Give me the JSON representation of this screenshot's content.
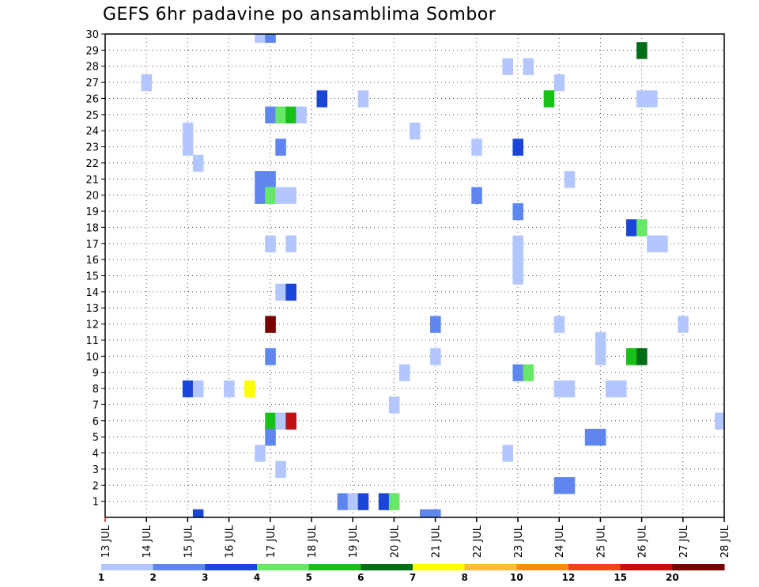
{
  "chart_data": {
    "type": "heatmap",
    "title": "GEFS 6hr padavine po ansamblima Sombor",
    "xlabel": "",
    "ylabel": "",
    "y_ticks": [
      "1",
      "2",
      "3",
      "4",
      "5",
      "6",
      "7",
      "8",
      "9",
      "10",
      "11",
      "12",
      "13",
      "14",
      "15",
      "16",
      "17",
      "18",
      "19",
      "20",
      "21",
      "22",
      "23",
      "24",
      "25",
      "26",
      "27",
      "28",
      "29",
      "30"
    ],
    "x_ticks": [
      "13 JUL",
      "14 JUL",
      "15 JUL",
      "16 JUL",
      "17 JUL",
      "18 JUL",
      "19 JUL",
      "20 JUL",
      "21 JUL",
      "22 JUL",
      "23 JUL",
      "24 JUL",
      "25 JUL",
      "26 JUL",
      "27 JUL",
      "28 JUL"
    ],
    "xlim": [
      0,
      15
    ],
    "ylim": [
      0,
      30
    ],
    "grid": true,
    "colorbar": {
      "labels": [
        "1",
        "2",
        "3",
        "4",
        "5",
        "6",
        "7",
        "8",
        "10",
        "12",
        "15",
        "20"
      ],
      "colors": [
        "#b3c6ff",
        "#5e86ee",
        "#1a45d8",
        "#66e866",
        "#18c018",
        "#006e18",
        "#ffff00",
        "#ffba40",
        "#ff8a18",
        "#e84818",
        "#c01010",
        "#780000"
      ]
    },
    "cells": [
      {
        "day": 3.75,
        "member": 30,
        "cat": 1
      },
      {
        "day": 4.0,
        "member": 30,
        "cat": 2
      },
      {
        "day": 13.0,
        "member": 29,
        "cat": 6
      },
      {
        "day": 9.75,
        "member": 28,
        "cat": 1
      },
      {
        "day": 10.25,
        "member": 28,
        "cat": 1
      },
      {
        "day": 1.0,
        "member": 27,
        "cat": 1
      },
      {
        "day": 11.0,
        "member": 27,
        "cat": 1
      },
      {
        "day": 5.25,
        "member": 26,
        "cat": 3
      },
      {
        "day": 6.25,
        "member": 26,
        "cat": 1
      },
      {
        "day": 10.75,
        "member": 26,
        "cat": 5
      },
      {
        "day": 13.0,
        "member": 26,
        "cat": 1
      },
      {
        "day": 13.25,
        "member": 26,
        "cat": 1
      },
      {
        "day": 4.0,
        "member": 25,
        "cat": 2
      },
      {
        "day": 4.25,
        "member": 25,
        "cat": 4
      },
      {
        "day": 4.5,
        "member": 25,
        "cat": 5
      },
      {
        "day": 4.75,
        "member": 25,
        "cat": 1
      },
      {
        "day": 7.5,
        "member": 24,
        "cat": 1
      },
      {
        "day": 2.0,
        "member": 24,
        "cat": 1
      },
      {
        "day": 2.0,
        "member": 23,
        "cat": 1
      },
      {
        "day": 4.25,
        "member": 23,
        "cat": 2
      },
      {
        "day": 9.0,
        "member": 23,
        "cat": 1
      },
      {
        "day": 10.0,
        "member": 23,
        "cat": 3
      },
      {
        "day": 2.25,
        "member": 22,
        "cat": 1
      },
      {
        "day": 3.75,
        "member": 21,
        "cat": 2
      },
      {
        "day": 4.0,
        "member": 21,
        "cat": 2
      },
      {
        "day": 11.25,
        "member": 21,
        "cat": 1
      },
      {
        "day": 3.75,
        "member": 20,
        "cat": 2
      },
      {
        "day": 4.0,
        "member": 20,
        "cat": 4
      },
      {
        "day": 4.25,
        "member": 20,
        "cat": 1
      },
      {
        "day": 4.5,
        "member": 20,
        "cat": 1
      },
      {
        "day": 9.0,
        "member": 20,
        "cat": 2
      },
      {
        "day": 10.0,
        "member": 19,
        "cat": 2
      },
      {
        "day": 12.75,
        "member": 18,
        "cat": 3
      },
      {
        "day": 13.0,
        "member": 18,
        "cat": 4
      },
      {
        "day": 4.0,
        "member": 17,
        "cat": 1
      },
      {
        "day": 4.5,
        "member": 17,
        "cat": 1
      },
      {
        "day": 10.0,
        "member": 17,
        "cat": 1
      },
      {
        "day": 13.25,
        "member": 17,
        "cat": 1
      },
      {
        "day": 13.5,
        "member": 17,
        "cat": 1
      },
      {
        "day": 10.0,
        "member": 16,
        "cat": 1
      },
      {
        "day": 10.0,
        "member": 15,
        "cat": 1
      },
      {
        "day": 4.25,
        "member": 14,
        "cat": 1
      },
      {
        "day": 4.5,
        "member": 14,
        "cat": 3
      },
      {
        "day": 4.0,
        "member": 12,
        "cat": 12
      },
      {
        "day": 8.0,
        "member": 12,
        "cat": 2
      },
      {
        "day": 11.0,
        "member": 12,
        "cat": 1
      },
      {
        "day": 14.0,
        "member": 12,
        "cat": 1
      },
      {
        "day": 12.0,
        "member": 11,
        "cat": 1
      },
      {
        "day": 4.0,
        "member": 10,
        "cat": 2
      },
      {
        "day": 8.0,
        "member": 10,
        "cat": 1
      },
      {
        "day": 12.0,
        "member": 10,
        "cat": 1
      },
      {
        "day": 12.75,
        "member": 10,
        "cat": 5
      },
      {
        "day": 13.0,
        "member": 10,
        "cat": 6
      },
      {
        "day": 7.25,
        "member": 9,
        "cat": 1
      },
      {
        "day": 10.0,
        "member": 9,
        "cat": 2
      },
      {
        "day": 10.25,
        "member": 9,
        "cat": 4
      },
      {
        "day": 2.0,
        "member": 8,
        "cat": 3
      },
      {
        "day": 2.25,
        "member": 8,
        "cat": 1
      },
      {
        "day": 3.0,
        "member": 8,
        "cat": 1
      },
      {
        "day": 3.5,
        "member": 8,
        "cat": 7
      },
      {
        "day": 11.0,
        "member": 8,
        "cat": 1
      },
      {
        "day": 11.25,
        "member": 8,
        "cat": 1
      },
      {
        "day": 12.25,
        "member": 8,
        "cat": 1
      },
      {
        "day": 12.5,
        "member": 8,
        "cat": 1
      },
      {
        "day": 7.0,
        "member": 7,
        "cat": 1
      },
      {
        "day": 4.0,
        "member": 6,
        "cat": 5
      },
      {
        "day": 4.25,
        "member": 6,
        "cat": 1
      },
      {
        "day": 4.5,
        "member": 6,
        "cat": 11
      },
      {
        "day": 14.9,
        "member": 6,
        "cat": 1
      },
      {
        "day": 4.0,
        "member": 5,
        "cat": 2
      },
      {
        "day": 11.75,
        "member": 5,
        "cat": 2
      },
      {
        "day": 12.0,
        "member": 5,
        "cat": 2
      },
      {
        "day": 3.75,
        "member": 4,
        "cat": 1
      },
      {
        "day": 9.75,
        "member": 4,
        "cat": 1
      },
      {
        "day": 4.25,
        "member": 3,
        "cat": 1
      },
      {
        "day": 11.0,
        "member": 2,
        "cat": 2
      },
      {
        "day": 11.25,
        "member": 2,
        "cat": 2
      },
      {
        "day": 5.75,
        "member": 1,
        "cat": 2
      },
      {
        "day": 6.0,
        "member": 1,
        "cat": 1
      },
      {
        "day": 6.25,
        "member": 1,
        "cat": 3
      },
      {
        "day": 6.75,
        "member": 1,
        "cat": 3
      },
      {
        "day": 7.0,
        "member": 1,
        "cat": 4
      },
      {
        "day": 2.25,
        "member": 0,
        "cat": 3
      },
      {
        "day": 7.75,
        "member": 0,
        "cat": 2
      },
      {
        "day": 8.0,
        "member": 0,
        "cat": 2
      }
    ]
  }
}
